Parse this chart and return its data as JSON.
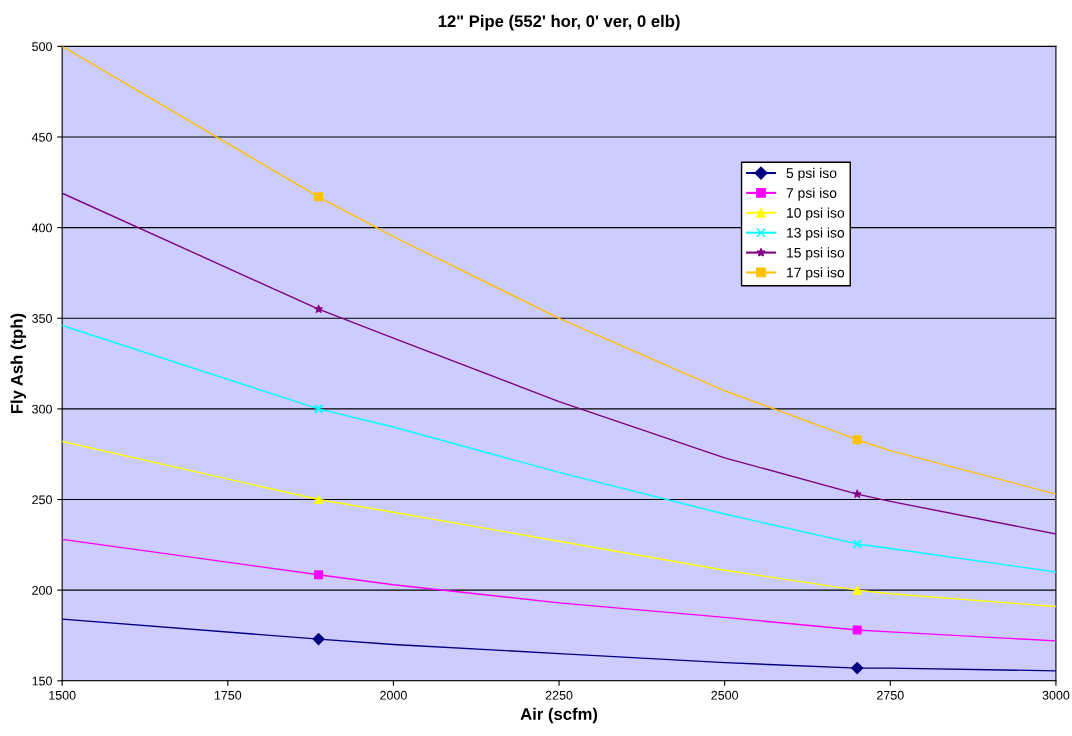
{
  "chart_data": {
    "type": "line",
    "title": "12\" Pipe (552' hor, 0' ver, 0 elb)",
    "xlabel": "Air (scfm)",
    "ylabel": "Fly Ash (tph)",
    "xlim": [
      1500,
      3000
    ],
    "xticks": [
      1500,
      1750,
      2000,
      2250,
      2500,
      2750,
      3000
    ],
    "ylim": [
      150,
      500
    ],
    "yticks": [
      150,
      200,
      250,
      300,
      350,
      400,
      450,
      500
    ],
    "grid": "y",
    "legend": "right",
    "line_style": "solid",
    "series": [
      {
        "name": "5 psi iso",
        "color": "#000080",
        "x": [
          1500,
          1887,
          2000,
          2250,
          2500,
          2700,
          2750,
          3000
        ],
        "values": [
          184,
          173,
          170,
          165,
          160,
          157,
          157,
          155.5
        ]
      },
      {
        "name": "7 psi iso",
        "color": "#ff00ff",
        "x": [
          1500,
          1887,
          2000,
          2250,
          2500,
          2700,
          2750,
          3000
        ],
        "values": [
          228,
          208.5,
          203,
          193,
          185,
          178,
          177,
          172
        ]
      },
      {
        "name": "10 psi iso",
        "color": "#ffff00",
        "x": [
          1500,
          1887,
          2000,
          2250,
          2500,
          2700,
          2750,
          3000
        ],
        "values": [
          282,
          250,
          243,
          227,
          211,
          200,
          198,
          191
        ]
      },
      {
        "name": "13 psi iso",
        "color": "#00ffff",
        "x": [
          1500,
          1887,
          2000,
          2250,
          2500,
          2700,
          2750,
          3000
        ],
        "values": [
          346,
          300,
          290,
          265,
          242,
          225.5,
          223,
          210
        ]
      },
      {
        "name": "15 psi iso",
        "color": "#800080",
        "x": [
          1500,
          1887,
          2000,
          2250,
          2500,
          2700,
          2750,
          3000
        ],
        "values": [
          419,
          355,
          339,
          304,
          273,
          253,
          249,
          231
        ]
      },
      {
        "name": "17 psi iso",
        "color": "#ffc000",
        "x": [
          1500,
          1887,
          2000,
          2250,
          2500,
          2700,
          2750,
          3000
        ],
        "values": [
          500,
          417,
          395,
          350,
          310,
          283,
          277,
          253
        ]
      },
      {
        "type": "scatter",
        "color": "#000080",
        "marker": "diamond",
        "x": [
          1887,
          2700
        ],
        "values": [
          173,
          157
        ]
      },
      {
        "type": "scatter",
        "color": "#ff00ff",
        "marker": "square",
        "x": [
          1887,
          2700
        ],
        "values": [
          208.5,
          178
        ]
      },
      {
        "type": "scatter",
        "color": "#ffff00",
        "marker": "triangle",
        "x": [
          1887,
          2700
        ],
        "values": [
          250,
          200
        ]
      },
      {
        "type": "scatter",
        "color": "#00ffff",
        "marker": "cross",
        "x": [
          1887,
          2700
        ],
        "values": [
          300,
          225.5
        ]
      },
      {
        "type": "scatter",
        "color": "#800080",
        "marker": "star",
        "x": [
          1887,
          2700
        ],
        "values": [
          355,
          253
        ]
      },
      {
        "type": "scatter",
        "color": "#ffc000",
        "marker": "square",
        "x": [
          1887,
          2700
        ],
        "values": [
          417,
          283
        ]
      }
    ]
  }
}
